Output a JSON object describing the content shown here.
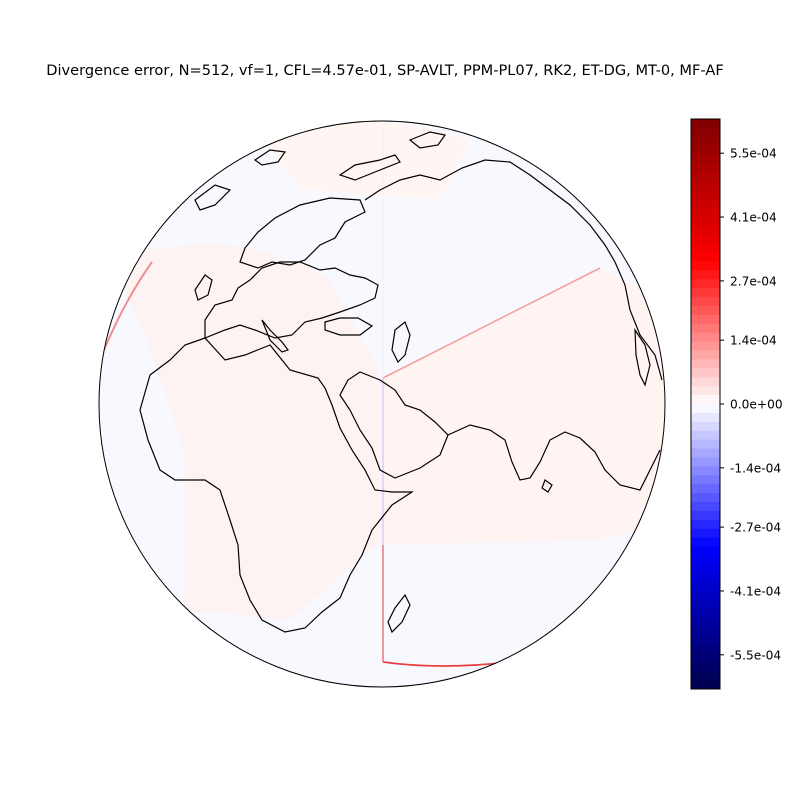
{
  "title": "Divergence error, N=512, vf=1, CFL=4.57e-01, SP-AVLT, PPM-PL07, RK2, ET-DG, MT-0, MF-AF",
  "colorbar": {
    "colormap": "seismic",
    "range": [
      -0.000625,
      0.000625
    ],
    "ticks": [
      {
        "value": 0.00055,
        "label": "5.5e-04"
      },
      {
        "value": 0.00041,
        "label": "4.1e-04"
      },
      {
        "value": 0.00027,
        "label": "2.7e-04"
      },
      {
        "value": 0.00014,
        "label": "1.4e-04"
      },
      {
        "value": 0.0,
        "label": "0.0e+00"
      },
      {
        "value": -0.00014,
        "label": "-1.4e-04"
      },
      {
        "value": -0.00027,
        "label": "-2.7e-04"
      },
      {
        "value": -0.00041,
        "label": "-4.1e-04"
      },
      {
        "value": -0.00055,
        "label": "-5.5e-04"
      }
    ],
    "colors": {
      "dark_red": "#800000",
      "red": "#ff0000",
      "white": "#ffffff",
      "blue": "#0000ff",
      "dark_blue": "#00004c"
    }
  },
  "map": {
    "projection": "orthographic",
    "background_color_positive": "#fff6f4",
    "background_color_negative": "#f8f8ff",
    "coastline_color": "#000000"
  }
}
